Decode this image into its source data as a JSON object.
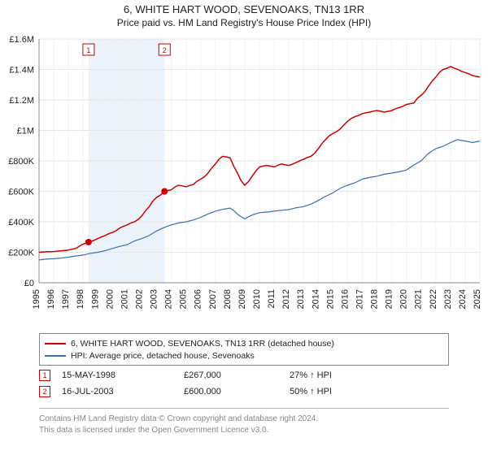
{
  "titles": {
    "line1": "6, WHITE HART WOOD, SEVENOAKS, TN13 1RR",
    "line2": "Price paid vs. HM Land Registry's House Price Index (HPI)"
  },
  "chart": {
    "type": "line",
    "background": "#ffffff",
    "plot_bg": "#ffffff",
    "grid_color": "#e6e6e6",
    "grid_light": "#f2f2f2",
    "shade_color": "#eaf2fb",
    "y": {
      "min": 0,
      "max": 1600000,
      "ticks": [
        0,
        200000,
        400000,
        600000,
        800000,
        1000000,
        1200000,
        1400000,
        1600000
      ],
      "tick_labels": [
        "£0",
        "£200K",
        "£400K",
        "£600K",
        "£800K",
        "£1M",
        "£1.2M",
        "£1.4M",
        "£1.6M"
      ]
    },
    "x": {
      "min": 1995,
      "max": 2025,
      "ticks": [
        1995,
        1996,
        1997,
        1998,
        1999,
        2000,
        2001,
        2002,
        2003,
        2004,
        2005,
        2006,
        2007,
        2008,
        2009,
        2010,
        2011,
        2012,
        2013,
        2014,
        2015,
        2016,
        2017,
        2018,
        2019,
        2020,
        2021,
        2022,
        2023,
        2024,
        2025
      ]
    },
    "series": [
      {
        "name": "price_paid",
        "color": "#cc0000",
        "width": 1.5,
        "points": [
          [
            1995,
            200000
          ],
          [
            1996,
            205000
          ],
          [
            1997,
            215000
          ],
          [
            1997.5,
            225000
          ],
          [
            1998.37,
            267000
          ],
          [
            1999,
            290000
          ],
          [
            1999.5,
            310000
          ],
          [
            2000,
            330000
          ],
          [
            2000.5,
            360000
          ],
          [
            2001,
            380000
          ],
          [
            2001.5,
            400000
          ],
          [
            2002,
            440000
          ],
          [
            2002.5,
            500000
          ],
          [
            2003,
            560000
          ],
          [
            2003.54,
            600000
          ],
          [
            2004,
            610000
          ],
          [
            2004.5,
            640000
          ],
          [
            2005,
            630000
          ],
          [
            2005.5,
            645000
          ],
          [
            2006,
            680000
          ],
          [
            2006.5,
            720000
          ],
          [
            2007,
            780000
          ],
          [
            2007.5,
            830000
          ],
          [
            2008,
            820000
          ],
          [
            2008.5,
            720000
          ],
          [
            2009,
            640000
          ],
          [
            2009.5,
            700000
          ],
          [
            2010,
            760000
          ],
          [
            2010.5,
            770000
          ],
          [
            2011,
            760000
          ],
          [
            2011.5,
            780000
          ],
          [
            2012,
            770000
          ],
          [
            2012.5,
            790000
          ],
          [
            2013,
            810000
          ],
          [
            2013.5,
            830000
          ],
          [
            2014,
            880000
          ],
          [
            2014.5,
            940000
          ],
          [
            2015,
            980000
          ],
          [
            2015.5,
            1010000
          ],
          [
            2016,
            1060000
          ],
          [
            2016.5,
            1090000
          ],
          [
            2017,
            1110000
          ],
          [
            2017.5,
            1120000
          ],
          [
            2018,
            1130000
          ],
          [
            2018.5,
            1120000
          ],
          [
            2019,
            1130000
          ],
          [
            2019.5,
            1150000
          ],
          [
            2020,
            1170000
          ],
          [
            2020.5,
            1180000
          ],
          [
            2021,
            1230000
          ],
          [
            2021.5,
            1290000
          ],
          [
            2022,
            1350000
          ],
          [
            2022.5,
            1400000
          ],
          [
            2023,
            1420000
          ],
          [
            2023.5,
            1400000
          ],
          [
            2024,
            1380000
          ],
          [
            2024.5,
            1360000
          ],
          [
            2025,
            1350000
          ]
        ]
      },
      {
        "name": "hpi",
        "color": "#3a6fb7",
        "width": 1.2,
        "points": [
          [
            1995,
            150000
          ],
          [
            1996,
            158000
          ],
          [
            1997,
            168000
          ],
          [
            1998,
            182000
          ],
          [
            1999,
            200000
          ],
          [
            2000,
            225000
          ],
          [
            2001,
            250000
          ],
          [
            2002,
            290000
          ],
          [
            2003,
            340000
          ],
          [
            2004,
            380000
          ],
          [
            2005,
            400000
          ],
          [
            2006,
            430000
          ],
          [
            2007,
            470000
          ],
          [
            2008,
            490000
          ],
          [
            2008.5,
            450000
          ],
          [
            2009,
            420000
          ],
          [
            2010,
            460000
          ],
          [
            2011,
            470000
          ],
          [
            2012,
            480000
          ],
          [
            2013,
            500000
          ],
          [
            2014,
            540000
          ],
          [
            2015,
            590000
          ],
          [
            2016,
            640000
          ],
          [
            2017,
            680000
          ],
          [
            2018,
            700000
          ],
          [
            2019,
            720000
          ],
          [
            2020,
            740000
          ],
          [
            2021,
            800000
          ],
          [
            2022,
            880000
          ],
          [
            2023,
            920000
          ],
          [
            2023.5,
            940000
          ],
          [
            2024,
            930000
          ],
          [
            2024.5,
            920000
          ],
          [
            2025,
            930000
          ]
        ]
      }
    ],
    "markers": [
      {
        "n": "1",
        "year": 1998.37,
        "value": 267000,
        "color": "#cc0000"
      },
      {
        "n": "2",
        "year": 2003.54,
        "value": 600000,
        "color": "#cc0000"
      }
    ],
    "shade_range": [
      1998.37,
      2003.54
    ],
    "tick_fontsize": 11
  },
  "legend": {
    "items": [
      {
        "color": "#cc0000",
        "label": "6, WHITE HART WOOD, SEVENOAKS, TN13 1RR (detached house)"
      },
      {
        "color": "#3a6fb7",
        "label": "HPI: Average price, detached house, Sevenoaks"
      }
    ]
  },
  "events": [
    {
      "n": "1",
      "color": "#cc0000",
      "date": "15-MAY-1998",
      "price": "£267,000",
      "delta": "27% ↑ HPI"
    },
    {
      "n": "2",
      "color": "#cc0000",
      "date": "16-JUL-2003",
      "price": "£600,000",
      "delta": "50% ↑ HPI"
    }
  ],
  "footer": {
    "line1": "Contains HM Land Registry data © Crown copyright and database right 2024.",
    "line2": "This data is licensed under the Open Government Licence v3.0."
  }
}
